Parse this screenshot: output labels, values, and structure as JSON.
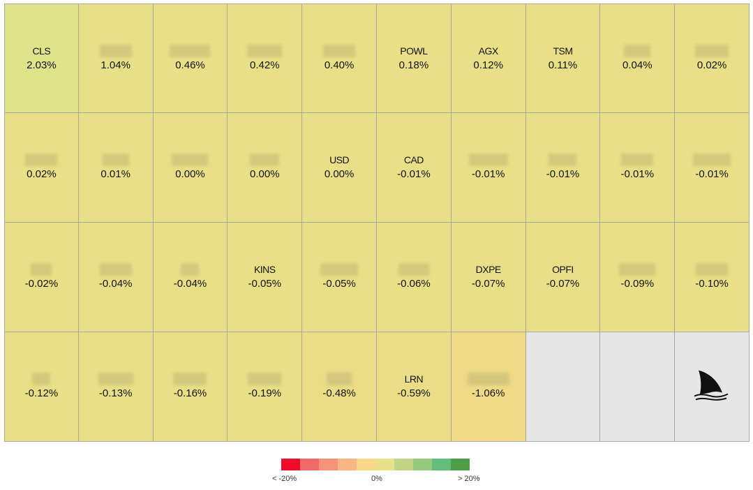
{
  "chart_data": {
    "type": "heatmap",
    "tiles": [
      {
        "ticker": "CLS",
        "change": "2.03%",
        "value": 2.03,
        "color": "#dfe38c"
      },
      {
        "ticker": "",
        "change": "1.04%",
        "value": 1.04,
        "color": "#e6e088"
      },
      {
        "ticker": "",
        "change": "0.46%",
        "value": 0.46,
        "color": "#e9df86"
      },
      {
        "ticker": "",
        "change": "0.42%",
        "value": 0.42,
        "color": "#e9df86"
      },
      {
        "ticker": "",
        "change": "0.40%",
        "value": 0.4,
        "color": "#e9df86"
      },
      {
        "ticker": "POWL",
        "change": "0.18%",
        "value": 0.18,
        "color": "#e9df86"
      },
      {
        "ticker": "AGX",
        "change": "0.12%",
        "value": 0.12,
        "color": "#e9df86"
      },
      {
        "ticker": "TSM",
        "change": "0.11%",
        "value": 0.11,
        "color": "#e9df86"
      },
      {
        "ticker": "",
        "change": "0.04%",
        "value": 0.04,
        "color": "#e9df86"
      },
      {
        "ticker": "",
        "change": "0.02%",
        "value": 0.02,
        "color": "#e9df86"
      },
      {
        "ticker": "",
        "change": "0.02%",
        "value": 0.02,
        "color": "#e9df86"
      },
      {
        "ticker": "",
        "change": "0.01%",
        "value": 0.01,
        "color": "#e9df86"
      },
      {
        "ticker": "",
        "change": "0.00%",
        "value": 0.0,
        "color": "#e9df86"
      },
      {
        "ticker": "",
        "change": "0.00%",
        "value": 0.0,
        "color": "#e9df86"
      },
      {
        "ticker": "USD",
        "change": "0.00%",
        "value": 0.0,
        "color": "#e9df86"
      },
      {
        "ticker": "CAD",
        "change": "-0.01%",
        "value": -0.01,
        "color": "#e9df86"
      },
      {
        "ticker": "",
        "change": "-0.01%",
        "value": -0.01,
        "color": "#e9df86"
      },
      {
        "ticker": "",
        "change": "-0.01%",
        "value": -0.01,
        "color": "#e9df86"
      },
      {
        "ticker": "",
        "change": "-0.01%",
        "value": -0.01,
        "color": "#e9df86"
      },
      {
        "ticker": "",
        "change": "-0.01%",
        "value": -0.01,
        "color": "#e9df86"
      },
      {
        "ticker": "",
        "change": "-0.02%",
        "value": -0.02,
        "color": "#e9df86"
      },
      {
        "ticker": "",
        "change": "-0.04%",
        "value": -0.04,
        "color": "#e9df86"
      },
      {
        "ticker": "",
        "change": "-0.04%",
        "value": -0.04,
        "color": "#e9df86"
      },
      {
        "ticker": "KINS",
        "change": "-0.05%",
        "value": -0.05,
        "color": "#e9df86"
      },
      {
        "ticker": "",
        "change": "-0.05%",
        "value": -0.05,
        "color": "#e9df86"
      },
      {
        "ticker": "",
        "change": "-0.06%",
        "value": -0.06,
        "color": "#e9df86"
      },
      {
        "ticker": "DXPE",
        "change": "-0.07%",
        "value": -0.07,
        "color": "#e9df86"
      },
      {
        "ticker": "OPFI",
        "change": "-0.07%",
        "value": -0.07,
        "color": "#e9df86"
      },
      {
        "ticker": "",
        "change": "-0.09%",
        "value": -0.09,
        "color": "#e9df86"
      },
      {
        "ticker": "",
        "change": "-0.10%",
        "value": -0.1,
        "color": "#e9df86"
      },
      {
        "ticker": "",
        "change": "-0.12%",
        "value": -0.12,
        "color": "#e9df86"
      },
      {
        "ticker": "",
        "change": "-0.13%",
        "value": -0.13,
        "color": "#e9df86"
      },
      {
        "ticker": "",
        "change": "-0.16%",
        "value": -0.16,
        "color": "#e9df86"
      },
      {
        "ticker": "",
        "change": "-0.19%",
        "value": -0.19,
        "color": "#e9df86"
      },
      {
        "ticker": "",
        "change": "-0.48%",
        "value": -0.48,
        "color": "#eadd86"
      },
      {
        "ticker": "LRN",
        "change": "-0.59%",
        "value": -0.59,
        "color": "#eadd86"
      },
      {
        "ticker": "",
        "change": "-1.06%",
        "value": -1.06,
        "color": "#efdb86"
      }
    ],
    "legend": {
      "colors": [
        "#ee0b2c",
        "#f16a6a",
        "#f39377",
        "#f7b682",
        "#fbd88a",
        "#e8e389",
        "#c2d586",
        "#94c97e",
        "#62be7b",
        "#4e9d48"
      ],
      "min_label": "< -20%",
      "mid_label": "0%",
      "max_label": "> 20%"
    },
    "empty_color": "#e6e6e6"
  }
}
